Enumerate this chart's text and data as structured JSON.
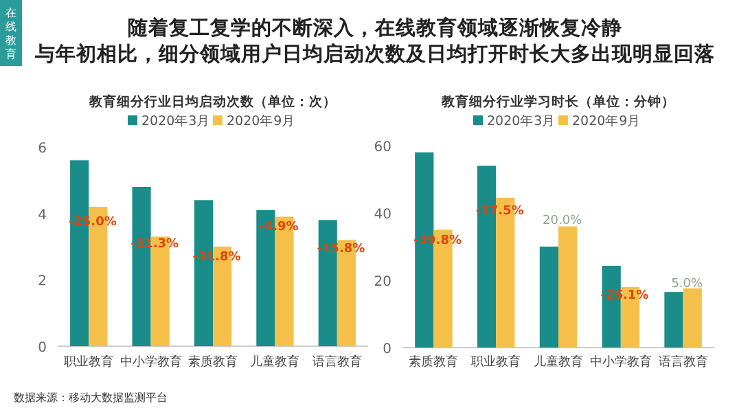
{
  "chart_data": [
    {
      "type": "bar",
      "title": "教育细分行业日均启动次数（单位：次）",
      "categories": [
        "职业教育",
        "中小学教育",
        "素质教育",
        "儿童教育",
        "语言教育"
      ],
      "series": [
        {
          "name": "2020年3月",
          "color": "#1a8c8a",
          "values": [
            5.6,
            4.8,
            4.4,
            4.1,
            3.8
          ]
        },
        {
          "name": "2020年9月",
          "color": "#f5c04a",
          "values": [
            4.2,
            3.3,
            3.0,
            3.9,
            3.2
          ]
        }
      ],
      "ylim": [
        0,
        6
      ],
      "yticks": [
        0,
        2,
        4,
        6
      ],
      "legend": "top",
      "grid": false,
      "annotations": [
        "在线教育",
        "随着复工复学的不断深入，在线教育领域逐渐恢复冷静",
        "与年初相比，细分领域用户日均启动次数及日均打开时长大多出现明显回落",
        {
          "text": "-25.0%",
          "x": "职业教育",
          "y": 3.8
        },
        {
          "text": "-31.3%",
          "x": "中小学教育",
          "y": 3.15
        },
        {
          "text": "-31.8%",
          "x": "素质教育",
          "y": 2.76
        },
        {
          "text": "-4.9%",
          "x": "儿童教育",
          "y": 3.67
        },
        {
          "text": "-15.8%",
          "x": "语言教育",
          "y": 3.0
        }
      ]
    },
    {
      "type": "bar",
      "title": "教育细分行业学习时长（单位：分钟）",
      "categories": [
        "素质教育",
        "职业教育",
        "儿童教育",
        "中小学教育",
        "语言教育"
      ],
      "series": [
        {
          "name": "2020年3月",
          "color": "#1a8c8a",
          "values": [
            58,
            54,
            30,
            24.3,
            16.5
          ]
        },
        {
          "name": "2020年9月",
          "color": "#f5c04a",
          "values": [
            35,
            44.5,
            36,
            18,
            17.6
          ]
        }
      ],
      "ylim": [
        0,
        60
      ],
      "yticks": [
        0,
        20,
        40,
        60
      ],
      "legend": "top",
      "grid": false,
      "annotations": [
        "数据来源：移动大数据监测平台",
        {
          "text": "-39.8%",
          "x": "素质教育",
          "y": 32.5
        },
        {
          "text": "-17.5%",
          "x": "职业教育",
          "y": 41.3
        },
        {
          "text": "20.0%",
          "x": "儿童教育",
          "y": 38.3
        },
        {
          "text": "-26.1%",
          "x": "中小学教育",
          "y": 16.1
        },
        {
          "text": "5.0%",
          "x": "语言教育",
          "y": 19.6
        }
      ]
    }
  ]
}
